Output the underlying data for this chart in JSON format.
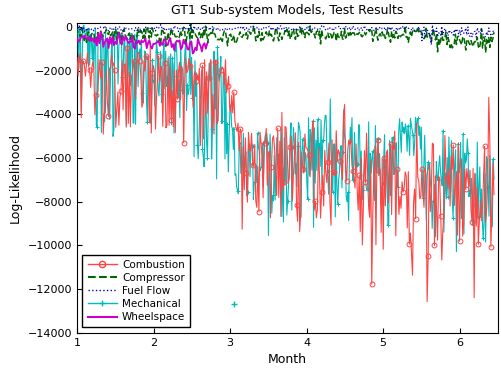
{
  "title": "GT1 Sub-system Models, Test Results",
  "xlabel": "Month",
  "ylabel": "Log-Likelihood",
  "xlim": [
    1,
    6.5
  ],
  "ylim": [
    -14000,
    200
  ],
  "yticks": [
    0,
    -2000,
    -4000,
    -6000,
    -8000,
    -10000,
    -12000,
    -14000
  ],
  "xticks": [
    1,
    2,
    3,
    4,
    5,
    6
  ],
  "colors": {
    "combustion": "#FF4444",
    "compressor": "#006600",
    "fuelflow": "#0000BB",
    "mechanical": "#00BBBB",
    "wheelspace": "#CC00CC"
  },
  "legend_entries": [
    "Combustion",
    "Compressor",
    "Fuel Flow",
    "Mechanical",
    "Wheelspace"
  ],
  "seed": 17
}
